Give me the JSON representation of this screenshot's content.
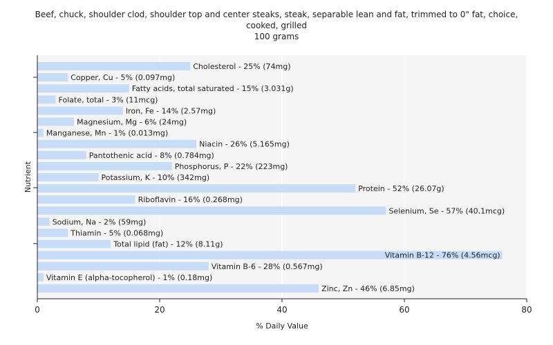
{
  "title_lines": [
    "Beef, chuck, shoulder clod, shoulder top and center steaks, steak, separable lean and fat, trimmed to 0\" fat, choice,",
    "cooked, grilled",
    "100 grams"
  ],
  "colors": {
    "bar": "#c6dcf7",
    "plot_background": "#f5f5f5",
    "grid": "#ffffff",
    "axis": "#222222"
  },
  "chart_data": {
    "type": "bar",
    "orientation": "horizontal",
    "title": "Beef, chuck, shoulder clod, shoulder top and center steaks, steak, separable lean and fat, trimmed to 0\" fat, choice, cooked, grilled",
    "subtitle": "100 grams",
    "xlabel": "% Daily Value",
    "ylabel": "Nutrient",
    "xlim": [
      0,
      80
    ],
    "xticks": [
      0,
      20,
      40,
      60,
      80
    ],
    "grid": true,
    "categories": [
      "Cholesterol",
      "Copper, Cu",
      "Fatty acids, total saturated",
      "Folate, total",
      "Iron, Fe",
      "Magnesium, Mg",
      "Manganese, Mn",
      "Niacin",
      "Pantothenic acid",
      "Phosphorus, P",
      "Potassium, K",
      "Protein",
      "Riboflavin",
      "Selenium, Se",
      "Sodium, Na",
      "Thiamin",
      "Total lipid (fat)",
      "Vitamin B-12",
      "Vitamin B-6",
      "Vitamin E (alpha-tocopherol)",
      "Zinc, Zn"
    ],
    "values": [
      25,
      5,
      15,
      3,
      14,
      6,
      1,
      26,
      8,
      22,
      10,
      52,
      16,
      57,
      2,
      5,
      12,
      76,
      28,
      1,
      46
    ],
    "labels": [
      "Cholesterol - 25% (74mg)",
      "Copper, Cu - 5% (0.097mg)",
      "Fatty acids, total saturated - 15% (3.031g)",
      "Folate, total - 3% (11mcg)",
      "Iron, Fe - 14% (2.57mg)",
      "Magnesium, Mg - 6% (24mg)",
      "Manganese, Mn - 1% (0.013mg)",
      "Niacin - 26% (5.165mg)",
      "Pantothenic acid - 8% (0.784mg)",
      "Phosphorus, P - 22% (223mg)",
      "Potassium, K - 10% (342mg)",
      "Protein - 52% (26.07g)",
      "Riboflavin - 16% (0.268mg)",
      "Selenium, Se - 57% (40.1mcg)",
      "Sodium, Na - 2% (59mg)",
      "Thiamin - 5% (0.068mg)",
      "Total lipid (fat) - 12% (8.11g)",
      "Vitamin B-12 - 76% (4.56mcg)",
      "Vitamin B-6 - 28% (0.567mg)",
      "Vitamin E (alpha-tocopherol) - 1% (0.18mg)",
      "Zinc, Zn - 46% (6.85mg)"
    ]
  }
}
